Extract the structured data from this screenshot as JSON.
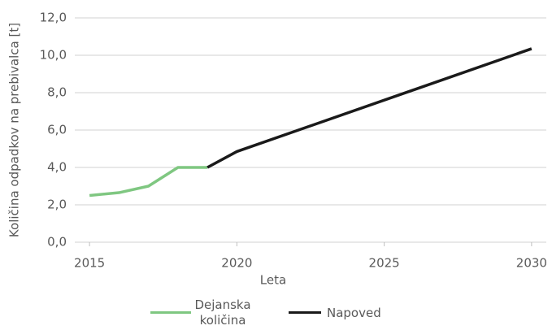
{
  "chart_data": {
    "type": "line",
    "x_label": "Leta",
    "y_label": "Količina odpadkov na prebivalca [t]",
    "series": [
      {
        "name": "Dejanska količina",
        "color": "#7fc781",
        "x": [
          2015,
          2016,
          2017,
          2018,
          2019
        ],
        "values": [
          2.5,
          2.65,
          3.0,
          4.0,
          4.0
        ]
      },
      {
        "name": "Napoved",
        "color": "#1a1a1a",
        "x": [
          2019,
          2020,
          2030
        ],
        "values": [
          4.0,
          4.85,
          10.35
        ]
      }
    ],
    "xlim": [
      2014.5,
      2030.5
    ],
    "xticks": [
      2015,
      2020,
      2025,
      2030
    ],
    "ylim": [
      0,
      12
    ],
    "yticks": [
      {
        "value": 0,
        "label": "0,0"
      },
      {
        "value": 2,
        "label": "2,0"
      },
      {
        "value": 4,
        "label": "4,0"
      },
      {
        "value": 6,
        "label": "6,0"
      },
      {
        "value": 8,
        "label": "8,0"
      },
      {
        "value": 10,
        "label": "10,0"
      },
      {
        "value": 12,
        "label": "12,0"
      }
    ],
    "grid": true
  }
}
